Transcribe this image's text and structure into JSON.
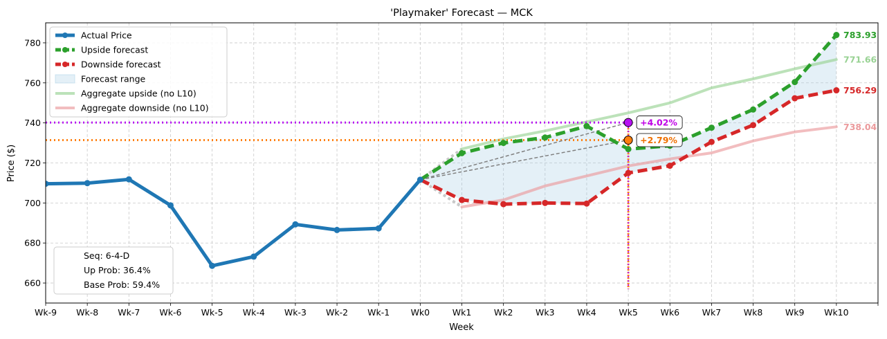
{
  "chart_data": {
    "type": "line",
    "title": "'Playmaker' Forecast — MCK",
    "xlabel": "Week",
    "ylabel": "Price ($)",
    "ylim": [
      650,
      790
    ],
    "yticks": [
      660,
      680,
      700,
      720,
      740,
      760,
      780
    ],
    "categories": [
      "Wk-9",
      "Wk-8",
      "Wk-7",
      "Wk-6",
      "Wk-5",
      "Wk-4",
      "Wk-3",
      "Wk-2",
      "Wk-1",
      "Wk0",
      "Wk1",
      "Wk2",
      "Wk3",
      "Wk4",
      "Wk5",
      "Wk6",
      "Wk7",
      "Wk8",
      "Wk9",
      "Wk10"
    ],
    "grid": true,
    "legend_position": "top-left",
    "series": [
      {
        "name": "Actual Price",
        "color": "#1f77b4",
        "x": [
          -9,
          -8,
          -7,
          -6,
          -5,
          -4,
          -3,
          -2,
          -1,
          0
        ],
        "values": [
          709.6,
          709.9,
          711.8,
          698.8,
          668.6,
          673.2,
          689.3,
          686.5,
          687.3,
          711.6
        ]
      },
      {
        "name": "Upside forecast",
        "color": "#2ca02c",
        "x": [
          0,
          1,
          2,
          3,
          4,
          5,
          6,
          7,
          8,
          9,
          10
        ],
        "values": [
          711.6,
          724.9,
          730.0,
          732.7,
          738.4,
          726.9,
          728.6,
          737.6,
          746.7,
          760.4,
          783.93
        ]
      },
      {
        "name": "Downside forecast",
        "color": "#d62728",
        "x": [
          0,
          1,
          2,
          3,
          4,
          5,
          6,
          7,
          8,
          9,
          10
        ],
        "values": [
          711.6,
          701.5,
          699.4,
          700.0,
          699.7,
          715.0,
          718.6,
          730.5,
          738.9,
          752.3,
          756.29
        ]
      },
      {
        "name": "Forecast range",
        "color": "#a6cde6"
      },
      {
        "name": "Aggregate upside (no L10)",
        "color": "#98d293",
        "x": [
          1,
          2,
          3,
          4,
          5,
          6,
          7,
          8,
          9,
          10
        ],
        "values": [
          727.0,
          732.0,
          736.0,
          740.5,
          745.0,
          750.0,
          757.5,
          762.0,
          767.0,
          771.66
        ]
      },
      {
        "name": "Aggregate downside (no L10)",
        "color": "#eb9a9c",
        "x": [
          1,
          2,
          3,
          4,
          5,
          6,
          7,
          8,
          9,
          10
        ],
        "values": [
          698.0,
          701.5,
          708.5,
          713.5,
          718.5,
          722.0,
          725.0,
          731.0,
          735.5,
          738.04
        ]
      }
    ],
    "end_labels": [
      {
        "text": "783.93",
        "value": 783.93,
        "color": "#2ca02c"
      },
      {
        "text": "771.66",
        "value": 771.66,
        "color": "#98d293"
      },
      {
        "text": "756.29",
        "value": 756.29,
        "color": "#d62728"
      },
      {
        "text": "738.04",
        "value": 738.04,
        "color": "#eb9a9c"
      }
    ],
    "markers": [
      {
        "label": "+4.02%",
        "x": 5,
        "value": 740.2,
        "color": "#b612f2",
        "fill": "#b612f2",
        "text_color": "#c000e6"
      },
      {
        "label": "+2.79%",
        "x": 5,
        "value": 731.4,
        "color": "#ff7f0e",
        "fill": "#ff7f0e",
        "text_color": "#ee6f00"
      }
    ],
    "stats": [
      "Seq: 6-4-D",
      "Up Prob: 36.4%",
      "Base Prob: 59.4%"
    ]
  }
}
